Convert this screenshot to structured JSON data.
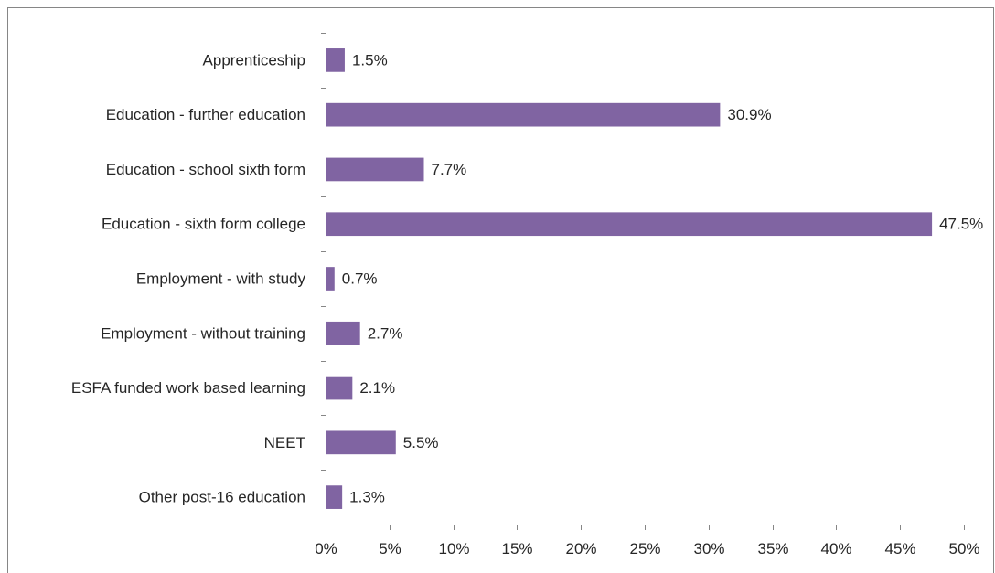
{
  "chart_data": {
    "type": "bar",
    "orientation": "horizontal",
    "categories": [
      "Apprenticeship",
      "Education - further education",
      "Education - school sixth form",
      "Education - sixth form college",
      "Employment - with study",
      "Employment - without training",
      "ESFA funded work based learning",
      "NEET",
      "Other post-16 education"
    ],
    "values": [
      1.5,
      30.9,
      7.7,
      47.5,
      0.7,
      2.7,
      2.1,
      5.5,
      1.3
    ],
    "data_labels": [
      "1.5%",
      "30.9%",
      "7.7%",
      "47.5%",
      "0.7%",
      "2.7%",
      "2.1%",
      "5.5%",
      "1.3%"
    ],
    "xlim": [
      0,
      50
    ],
    "x_ticks": [
      0,
      5,
      10,
      15,
      20,
      25,
      30,
      35,
      40,
      45,
      50
    ],
    "x_tick_labels": [
      "0%",
      "5%",
      "10%",
      "15%",
      "20%",
      "25%",
      "30%",
      "35%",
      "40%",
      "45%",
      "50%"
    ],
    "grid": false,
    "legend": "none",
    "title": "",
    "xlabel": "",
    "ylabel": "",
    "colors": {
      "bar": "#8064A2",
      "axis": "#868686",
      "text": "#262626",
      "border": "#868686"
    }
  }
}
